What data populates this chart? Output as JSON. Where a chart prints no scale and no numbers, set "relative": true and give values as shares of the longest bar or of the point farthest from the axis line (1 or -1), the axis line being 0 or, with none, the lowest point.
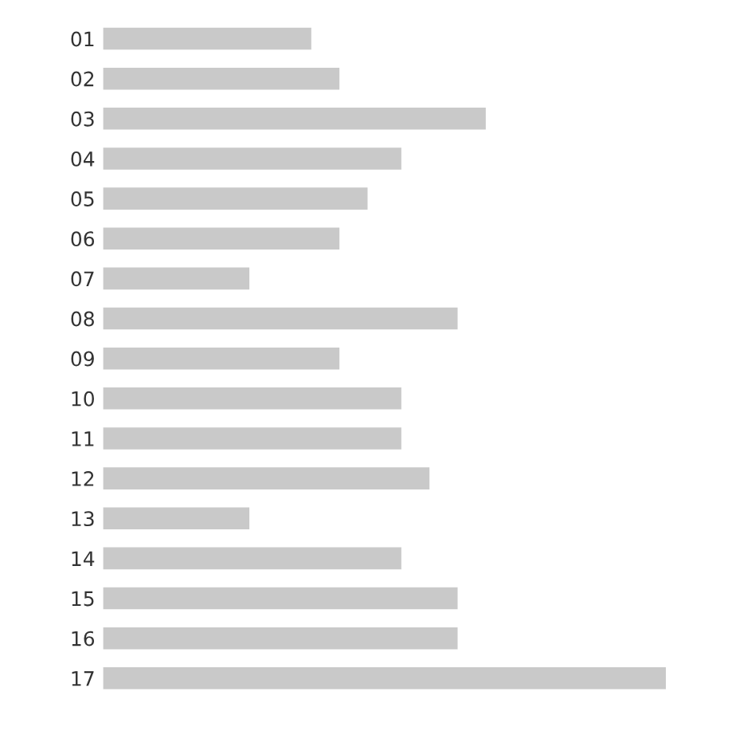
{
  "chart_data": {
    "type": "bar",
    "orientation": "horizontal",
    "relative": true,
    "color": "#c9c9c9",
    "categories": [
      "01",
      "02",
      "03",
      "04",
      "05",
      "06",
      "07",
      "08",
      "09",
      "10",
      "11",
      "12",
      "13",
      "14",
      "15",
      "16",
      "17"
    ],
    "values": [
      0.37,
      0.42,
      0.68,
      0.53,
      0.47,
      0.42,
      0.26,
      0.63,
      0.42,
      0.53,
      0.53,
      0.58,
      0.26,
      0.53,
      0.63,
      0.63,
      1
    ],
    "grid": false,
    "legend": false
  }
}
